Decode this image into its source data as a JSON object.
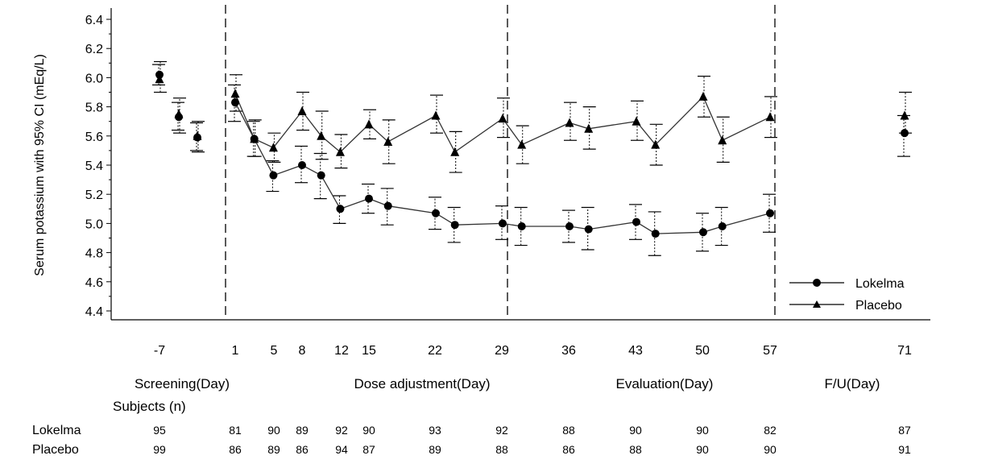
{
  "chart_data": {
    "type": "line",
    "ylabel": "Serum potassium with 95% CI (mEq/L)",
    "ylim": [
      4.35,
      6.45
    ],
    "y_ticks": [
      "4.4",
      "4.6",
      "4.8",
      "5.0",
      "5.2",
      "5.4",
      "5.6",
      "5.8",
      "6.0",
      "6.2",
      "6.4"
    ],
    "x_ticks": [
      "-7",
      "1",
      "5",
      "8",
      "12",
      "15",
      "22",
      "29",
      "36",
      "43",
      "50",
      "57",
      "71"
    ],
    "phases": [
      "Screening(Day)",
      "Dose adjustment(Day)",
      "Evaluation(Day)",
      "F/U(Day)"
    ],
    "phase_boundaries_day": [
      0,
      30,
      57
    ],
    "series": [
      {
        "name": "Lokelma",
        "marker": "circle",
        "points": [
          {
            "day": -7,
            "y": 6.02,
            "lo": 5.95,
            "hi": 6.09
          },
          {
            "day": -4,
            "y": 5.73,
            "lo": 5.64,
            "hi": 5.83
          },
          {
            "day": -1.5,
            "y": 5.59,
            "lo": 5.5,
            "hi": 5.69
          },
          {
            "day": 1,
            "y": 5.83,
            "lo": 5.7,
            "hi": 5.95
          },
          {
            "day": 3,
            "y": 5.58,
            "lo": 5.46,
            "hi": 5.7
          },
          {
            "day": 5,
            "y": 5.33,
            "lo": 5.22,
            "hi": 5.43
          },
          {
            "day": 8,
            "y": 5.4,
            "lo": 5.28,
            "hi": 5.53
          },
          {
            "day": 10,
            "y": 5.33,
            "lo": 5.17,
            "hi": 5.48
          },
          {
            "day": 12,
            "y": 5.1,
            "lo": 5.0,
            "hi": 5.19
          },
          {
            "day": 15,
            "y": 5.17,
            "lo": 5.07,
            "hi": 5.27
          },
          {
            "day": 17,
            "y": 5.12,
            "lo": 4.99,
            "hi": 5.24
          },
          {
            "day": 22,
            "y": 5.07,
            "lo": 4.96,
            "hi": 5.18
          },
          {
            "day": 24,
            "y": 4.99,
            "lo": 4.87,
            "hi": 5.11
          },
          {
            "day": 29,
            "y": 5.0,
            "lo": 4.89,
            "hi": 5.12
          },
          {
            "day": 31,
            "y": 4.98,
            "lo": 4.85,
            "hi": 5.11
          },
          {
            "day": 36,
            "y": 4.98,
            "lo": 4.87,
            "hi": 5.09
          },
          {
            "day": 38,
            "y": 4.96,
            "lo": 4.82,
            "hi": 5.11
          },
          {
            "day": 43,
            "y": 5.01,
            "lo": 4.89,
            "hi": 5.13
          },
          {
            "day": 45,
            "y": 4.93,
            "lo": 4.78,
            "hi": 5.08
          },
          {
            "day": 50,
            "y": 4.94,
            "lo": 4.81,
            "hi": 5.07
          },
          {
            "day": 52,
            "y": 4.98,
            "lo": 4.85,
            "hi": 5.11
          },
          {
            "day": 57,
            "y": 5.07,
            "lo": 4.94,
            "hi": 5.2
          },
          {
            "day": 71,
            "y": 5.62,
            "lo": 5.46,
            "hi": 5.74
          }
        ]
      },
      {
        "name": "Placebo",
        "marker": "triangle",
        "points": [
          {
            "day": -7,
            "y": 5.99,
            "lo": 5.9,
            "hi": 6.11
          },
          {
            "day": -4,
            "y": 5.75,
            "lo": 5.62,
            "hi": 5.86
          },
          {
            "day": -1.5,
            "y": 5.6,
            "lo": 5.49,
            "hi": 5.7
          },
          {
            "day": 1,
            "y": 5.89,
            "lo": 5.77,
            "hi": 6.02
          },
          {
            "day": 3,
            "y": 5.58,
            "lo": 5.46,
            "hi": 5.71
          },
          {
            "day": 5,
            "y": 5.52,
            "lo": 5.42,
            "hi": 5.62
          },
          {
            "day": 8,
            "y": 5.77,
            "lo": 5.64,
            "hi": 5.9
          },
          {
            "day": 10,
            "y": 5.6,
            "lo": 5.44,
            "hi": 5.77
          },
          {
            "day": 12,
            "y": 5.49,
            "lo": 5.38,
            "hi": 5.61
          },
          {
            "day": 15,
            "y": 5.68,
            "lo": 5.58,
            "hi": 5.78
          },
          {
            "day": 17,
            "y": 5.56,
            "lo": 5.41,
            "hi": 5.71
          },
          {
            "day": 22,
            "y": 5.74,
            "lo": 5.62,
            "hi": 5.88
          },
          {
            "day": 24,
            "y": 5.49,
            "lo": 5.35,
            "hi": 5.63
          },
          {
            "day": 29,
            "y": 5.72,
            "lo": 5.59,
            "hi": 5.86
          },
          {
            "day": 31,
            "y": 5.54,
            "lo": 5.41,
            "hi": 5.67
          },
          {
            "day": 36,
            "y": 5.69,
            "lo": 5.57,
            "hi": 5.83
          },
          {
            "day": 38,
            "y": 5.65,
            "lo": 5.51,
            "hi": 5.8
          },
          {
            "day": 43,
            "y": 5.7,
            "lo": 5.57,
            "hi": 5.84
          },
          {
            "day": 45,
            "y": 5.54,
            "lo": 5.4,
            "hi": 5.68
          },
          {
            "day": 50,
            "y": 5.87,
            "lo": 5.73,
            "hi": 6.01
          },
          {
            "day": 52,
            "y": 5.57,
            "lo": 5.42,
            "hi": 5.73
          },
          {
            "day": 57,
            "y": 5.73,
            "lo": 5.59,
            "hi": 5.87
          },
          {
            "day": 71,
            "y": 5.74,
            "lo": 5.62,
            "hi": 5.9
          }
        ]
      }
    ],
    "legend": {
      "position": "bottom-right",
      "entries": [
        "Lokelma",
        "Placebo"
      ]
    },
    "table": {
      "title": "Subjects (n)",
      "rows": [
        {
          "label": "Lokelma",
          "values": [
            "95",
            "81",
            "90",
            "89",
            "92",
            "90",
            "93",
            "92",
            "88",
            "90",
            "90",
            "82",
            "87"
          ]
        },
        {
          "label": "Placebo",
          "values": [
            "99",
            "86",
            "89",
            "86",
            "94",
            "87",
            "89",
            "88",
            "86",
            "88",
            "90",
            "90",
            "91"
          ]
        }
      ]
    }
  }
}
